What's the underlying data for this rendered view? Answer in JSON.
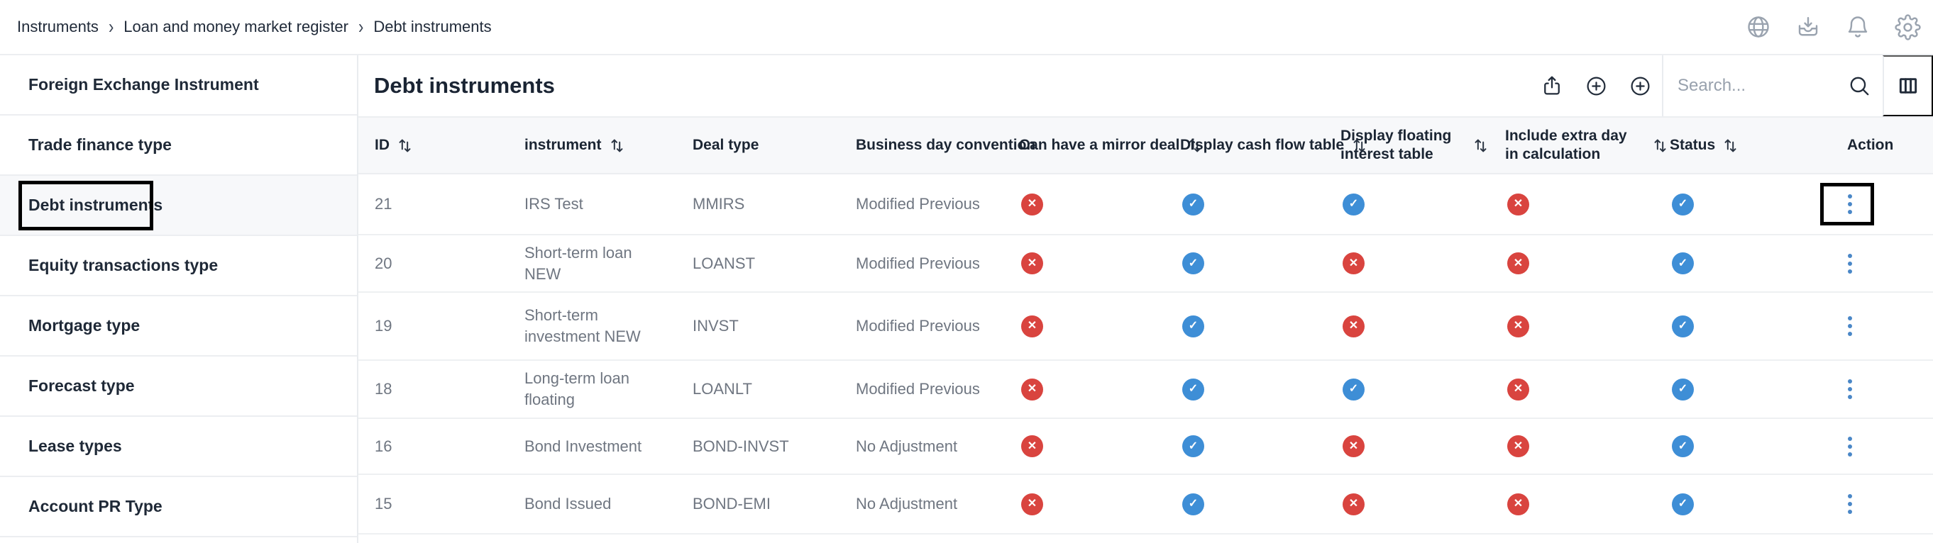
{
  "breadcrumb": {
    "items": [
      "Instruments",
      "Loan and money market register",
      "Debt instruments"
    ],
    "separator": "›"
  },
  "topbar": {
    "icons": [
      "globe-icon",
      "inbox-download-icon",
      "bell-icon",
      "gear-icon"
    ]
  },
  "sidebar": {
    "items": [
      {
        "label": "Foreign Exchange Instrument",
        "selected": false,
        "annotated": false
      },
      {
        "label": "Trade finance type",
        "selected": false,
        "annotated": false
      },
      {
        "label": "Debt instruments",
        "selected": true,
        "annotated": true
      },
      {
        "label": "Equity transactions type",
        "selected": false,
        "annotated": false
      },
      {
        "label": "Mortgage type",
        "selected": false,
        "annotated": false
      },
      {
        "label": "Forecast type",
        "selected": false,
        "annotated": false
      },
      {
        "label": "Lease types",
        "selected": false,
        "annotated": false
      },
      {
        "label": "Account PR Type",
        "selected": false,
        "annotated": false
      }
    ]
  },
  "main": {
    "title": "Debt instruments",
    "toolbar": {
      "search_placeholder": "Search...",
      "icons": [
        "share-icon",
        "plus-circle-icon",
        "plus-circle-icon",
        "search-icon",
        "columns-icon"
      ]
    },
    "table": {
      "columns": [
        {
          "label": "ID",
          "sort": true
        },
        {
          "label": "instrument",
          "sort": true
        },
        {
          "label": "Deal type",
          "sort": false
        },
        {
          "label": "Business day convention",
          "sort": false
        },
        {
          "label": "Can have a mirror deal",
          "sort": true
        },
        {
          "label": "Display cash flow table",
          "sort": true
        },
        {
          "label": "Display floating interest table",
          "sort": true,
          "wrap": true
        },
        {
          "label": "Include extra day in calculation",
          "sort": true,
          "wrap": true
        },
        {
          "label": "Status",
          "sort": true
        },
        {
          "label": "Action",
          "sort": false
        }
      ],
      "rows": [
        {
          "id": "21",
          "instrument": "IRS Test",
          "deal_type": "MMIRS",
          "business_day_convention": "Modified Previous",
          "can_have_a_mirror_deal": false,
          "display_cash_flow_table": true,
          "display_floating_interest_table": true,
          "include_extra_day_in_calculation": false,
          "status": true,
          "action_annotated": true
        },
        {
          "id": "20",
          "instrument": "Short-term loan NEW",
          "deal_type": "LOANST",
          "business_day_convention": "Modified Previous",
          "can_have_a_mirror_deal": false,
          "display_cash_flow_table": true,
          "display_floating_interest_table": false,
          "include_extra_day_in_calculation": false,
          "status": true,
          "action_annotated": false
        },
        {
          "id": "19",
          "instrument": "Short-term investment NEW",
          "deal_type": "INVST",
          "business_day_convention": "Modified Previous",
          "can_have_a_mirror_deal": false,
          "display_cash_flow_table": true,
          "display_floating_interest_table": false,
          "include_extra_day_in_calculation": false,
          "status": true,
          "action_annotated": false
        },
        {
          "id": "18",
          "instrument": "Long-term loan floating",
          "deal_type": "LOANLT",
          "business_day_convention": "Modified Previous",
          "can_have_a_mirror_deal": false,
          "display_cash_flow_table": true,
          "display_floating_interest_table": true,
          "include_extra_day_in_calculation": false,
          "status": true,
          "action_annotated": false
        },
        {
          "id": "16",
          "instrument": "Bond Investment",
          "deal_type": "BOND-INVST",
          "business_day_convention": "No Adjustment",
          "can_have_a_mirror_deal": false,
          "display_cash_flow_table": true,
          "display_floating_interest_table": false,
          "include_extra_day_in_calculation": false,
          "status": true,
          "action_annotated": false
        },
        {
          "id": "15",
          "instrument": "Bond Issued",
          "deal_type": "BOND-EMI",
          "business_day_convention": "No Adjustment",
          "can_have_a_mirror_deal": false,
          "display_cash_flow_table": true,
          "display_floating_interest_table": false,
          "include_extra_day_in_calculation": false,
          "status": true,
          "action_annotated": false
        }
      ]
    }
  },
  "icons": {
    "check": "✓",
    "cross": "✕",
    "kebab": "vertical-ellipsis-icon",
    "sort": "sort-arrows-icon"
  },
  "colors": {
    "accent_blue": "#3e8ed6",
    "negative_red": "#d9443f",
    "kebab_blue": "#4a87c7",
    "annotation_black": "#000000",
    "header_band": "#f7f8fa"
  }
}
